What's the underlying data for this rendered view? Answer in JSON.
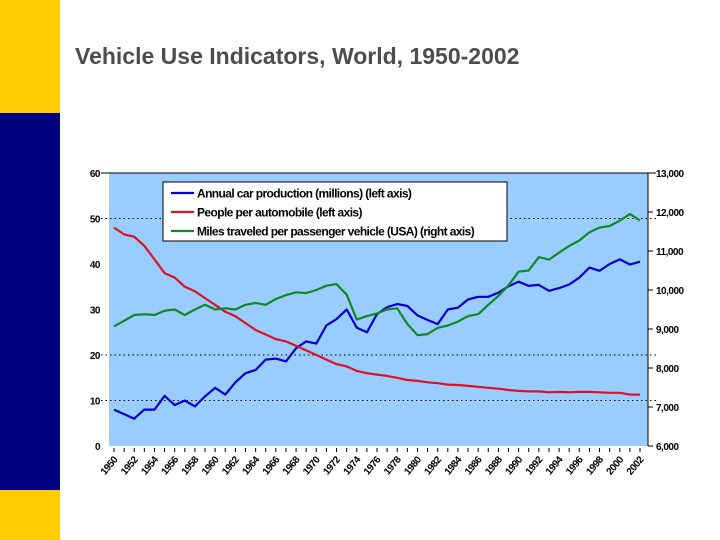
{
  "slide": {
    "title": "Vehicle Use Indicators, World, 1950-2002",
    "colors": {
      "yellow": "#ffcc00",
      "navy": "#000080",
      "plot_bg": "#99ccff"
    }
  },
  "chart_data": {
    "type": "line",
    "title": "",
    "x": [
      1950,
      1951,
      1952,
      1953,
      1954,
      1955,
      1956,
      1957,
      1958,
      1959,
      1960,
      1961,
      1962,
      1963,
      1964,
      1965,
      1966,
      1967,
      1968,
      1969,
      1970,
      1971,
      1972,
      1973,
      1974,
      1975,
      1976,
      1977,
      1978,
      1979,
      1980,
      1981,
      1982,
      1983,
      1984,
      1985,
      1986,
      1987,
      1988,
      1989,
      1990,
      1991,
      1992,
      1993,
      1994,
      1995,
      1996,
      1997,
      1998,
      1999,
      2000,
      2001,
      2002
    ],
    "x_tick_labels": [
      "1950",
      "1952",
      "1954",
      "1956",
      "1958",
      "1960",
      "1962",
      "1964",
      "1966",
      "1968",
      "1970",
      "1972",
      "1974",
      "1976",
      "1978",
      "1980",
      "1982",
      "1984",
      "1986",
      "1988",
      "1990",
      "1992",
      "1994",
      "1996",
      "1998",
      "2000",
      "2002"
    ],
    "left_axis": {
      "ylim": [
        0,
        60
      ],
      "ticks": [
        "0",
        "10",
        "20",
        "30",
        "40",
        "50",
        "60"
      ]
    },
    "right_axis": {
      "ylim": [
        6000,
        13000
      ],
      "ticks": [
        "6,000",
        "7,000",
        "8,000",
        "9,000",
        "10,000",
        "11,000",
        "12,000",
        "13,000"
      ]
    },
    "grid": {
      "style": "dotted",
      "left_values": [
        10,
        20,
        50
      ]
    },
    "legend_position": "top-center",
    "series": [
      {
        "name": "Annual car production (millions) (left axis)",
        "axis": "left",
        "color": "#0000cc",
        "values": [
          8,
          7,
          6,
          8,
          8,
          11,
          9,
          10,
          8.7,
          10.9,
          12.8,
          11.3,
          14,
          16,
          16.7,
          19,
          19.2,
          18.6,
          21.5,
          23,
          22.5,
          26.5,
          27.9,
          30,
          26,
          25,
          29,
          30.5,
          31.2,
          30.8,
          28.7,
          27.7,
          26.8,
          30,
          30.4,
          32.2,
          32.8,
          32.8,
          33.7,
          35.1,
          36.1,
          35.2,
          35.4,
          34.1,
          34.7,
          35.5,
          37,
          39.2,
          38.5,
          40,
          41,
          39.9,
          40.5
        ]
      },
      {
        "name": "People per automobile (left axis)",
        "axis": "left",
        "color": "#dd1122",
        "values": [
          48,
          46.5,
          46,
          44,
          41,
          38,
          37,
          35,
          34,
          32.5,
          31,
          29.5,
          28.5,
          27,
          25.5,
          24.5,
          23.5,
          23,
          22,
          21,
          20,
          19,
          18,
          17.5,
          16.5,
          16,
          15.7,
          15.4,
          15,
          14.5,
          14.3,
          14,
          13.8,
          13.5,
          13.4,
          13.2,
          13,
          12.8,
          12.6,
          12.3,
          12.1,
          12,
          12,
          11.8,
          11.9,
          11.8,
          11.9,
          11.9,
          11.8,
          11.7,
          11.7,
          11.3,
          11.3
        ]
      },
      {
        "name": "Miles traveled per passenger vehicle (USA) (right axis)",
        "axis": "right",
        "color": "#118822",
        "values": [
          9070,
          9210,
          9360,
          9380,
          9360,
          9470,
          9500,
          9360,
          9500,
          9620,
          9500,
          9530,
          9500,
          9620,
          9670,
          9620,
          9770,
          9870,
          9940,
          9920,
          10000,
          10110,
          10150,
          9880,
          9240,
          9330,
          9400,
          9500,
          9530,
          9130,
          8840,
          8870,
          9030,
          9090,
          9190,
          9330,
          9380,
          9620,
          9850,
          10120,
          10470,
          10500,
          10840,
          10780,
          10960,
          11130,
          11270,
          11480,
          11600,
          11640,
          11780,
          11950,
          11780
        ]
      }
    ]
  }
}
